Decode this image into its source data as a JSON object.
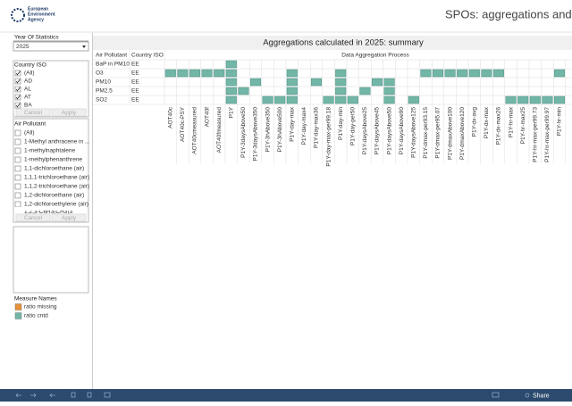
{
  "header": {
    "org": [
      "European",
      "Environment",
      "Agency"
    ],
    "title": "SPOs: aggregations and c"
  },
  "filters": {
    "year": {
      "title": "Year Of Statistics",
      "value": "2025"
    },
    "country": {
      "title": "Country ISO",
      "items": [
        "(All)",
        "AD",
        "AL",
        "AT",
        "BA"
      ],
      "buttons": [
        "Cancel",
        "Apply"
      ]
    },
    "pollutant": {
      "title": "Air Pollutant",
      "items": [
        "(All)",
        "1-Methyl anthracene in ...",
        "1-methylnaphtalene",
        "1-methylphenanthrene",
        "1,1-dichloroethane (air)",
        "1,1,1-trichloroethane (air)",
        "1,1,2-trichloroethane (air)",
        "1,2-dichloroethane (air)",
        "1,2-dichloroethylene (air)",
        "1,2,3-C6H3(CH3)3"
      ],
      "buttons": [
        "Cancel",
        "Apply"
      ]
    }
  },
  "legend": {
    "title": "Measure Names",
    "items": [
      {
        "name": "ratio missing",
        "color": "#e8923a"
      },
      {
        "name": "ratio cntd",
        "color": "#72b6a8"
      }
    ]
  },
  "table": {
    "title": "Aggregations calculated in 2025: summary",
    "headers": [
      "Air Pollutant",
      "Country ISO",
      "Data Aggregation Process"
    ],
    "columns": [
      "AOT40c",
      "AOT40c-PSY",
      "AOT40cmeasured",
      "AOT40f",
      "AOT40fmeasured",
      "P1Y",
      "P1Y-3daysAbove50",
      "P1Y-3daysAbove350",
      "P1Y-3hAbove350",
      "P1Y-3hAbove500",
      "P1Y-day-max",
      "P1Y-day-max4",
      "P1Y-day-max36",
      "P1Y-day-max-per99.18",
      "P1Y-day-min",
      "P1Y-day-per50",
      "P1Y-daysAbove25",
      "P1Y-daysAbove45",
      "P1Y-daysAbove50",
      "P1Y-daysAbove90",
      "P1Y-daysAbove125",
      "P1Y-dmax-per93.15",
      "P1Y-dmax-per95.07",
      "P1Y-dmaxAbove100",
      "P1Y-dmaxAbove120",
      "P1Y-dx-avg",
      "P1Y-dx-max",
      "P1Y-dx-max26",
      "P1Y-hr-max",
      "P1Y-hr-max25",
      "P1Y-hr-max-per99.73",
      "P1Y-hr-max-per99.97",
      "P1Y-hr-min"
    ],
    "rows": [
      {
        "pollutant": "BaP in PM10",
        "country": "EE",
        "cells": [
          0,
          0,
          0,
          0,
          0,
          1,
          0,
          0,
          0,
          0,
          0,
          0,
          0,
          0,
          0,
          0,
          0,
          0,
          0,
          0,
          0,
          0,
          0,
          0,
          0,
          0,
          0,
          0,
          0,
          0,
          0,
          0,
          0
        ]
      },
      {
        "pollutant": "O3",
        "country": "EE",
        "cells": [
          1,
          1,
          1,
          1,
          1,
          1,
          0,
          0,
          0,
          0,
          1,
          0,
          0,
          0,
          1,
          0,
          0,
          0,
          0,
          0,
          0,
          1,
          1,
          1,
          1,
          1,
          1,
          1,
          0,
          0,
          0,
          0,
          1
        ]
      },
      {
        "pollutant": "PM10",
        "country": "EE",
        "cells": [
          0,
          0,
          0,
          0,
          0,
          1,
          0,
          1,
          0,
          0,
          1,
          0,
          1,
          0,
          1,
          0,
          0,
          1,
          1,
          0,
          0,
          0,
          0,
          0,
          0,
          0,
          0,
          0,
          0,
          0,
          0,
          0,
          0
        ]
      },
      {
        "pollutant": "PM2.5",
        "country": "EE",
        "cells": [
          0,
          0,
          0,
          0,
          0,
          1,
          1,
          0,
          0,
          0,
          1,
          0,
          0,
          0,
          1,
          0,
          1,
          0,
          1,
          0,
          0,
          0,
          0,
          0,
          0,
          0,
          0,
          0,
          0,
          0,
          0,
          0,
          0
        ]
      },
      {
        "pollutant": "SO2",
        "country": "EE",
        "cells": [
          0,
          0,
          0,
          0,
          0,
          1,
          0,
          0,
          1,
          1,
          1,
          0,
          0,
          1,
          1,
          1,
          0,
          0,
          1,
          0,
          1,
          0,
          0,
          0,
          0,
          0,
          0,
          0,
          1,
          1,
          1,
          1,
          1
        ]
      }
    ]
  },
  "toolbar": {
    "share": "Share"
  }
}
